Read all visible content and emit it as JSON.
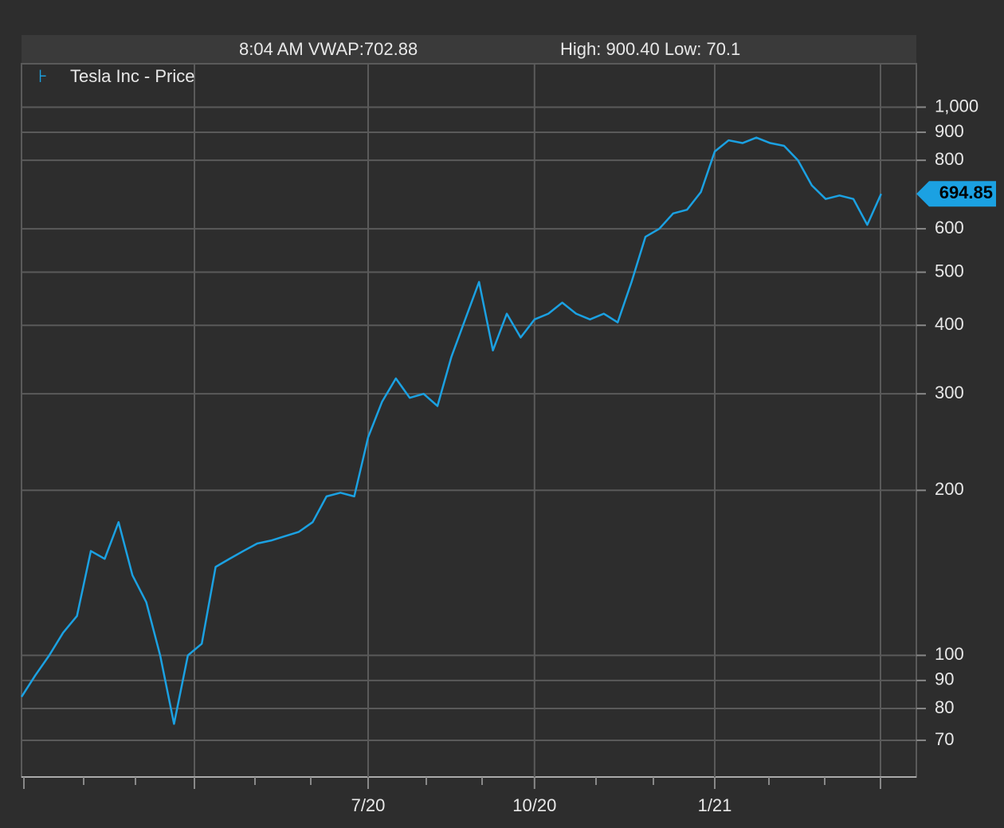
{
  "chart_data": {
    "type": "line",
    "annotations": [
      "8:04 AM VWAP:702.88",
      "High: 900.40 Low: 70.1"
    ],
    "categories": [
      null,
      null,
      null,
      null,
      null,
      null,
      null,
      null,
      null,
      null,
      null,
      null,
      null,
      null,
      null,
      null,
      null,
      null,
      null,
      null,
      null,
      null,
      null,
      null,
      null,
      "7/20",
      null,
      null,
      null,
      null,
      null,
      null,
      null,
      null,
      null,
      null,
      null,
      "10/20",
      null,
      null,
      null,
      null,
      null,
      null,
      null,
      null,
      null,
      null,
      null,
      null,
      "1/21",
      null,
      null,
      null,
      null,
      null,
      null,
      null,
      null,
      null,
      null,
      null,
      null
    ],
    "series": [
      {
        "name": "Tesla Inc - Price",
        "color": "#1ba1e2",
        "values": [
          84,
          92,
          100,
          110,
          118,
          155,
          150,
          175,
          140,
          125,
          100,
          75,
          100,
          105,
          145,
          150,
          155,
          160,
          162,
          165,
          168,
          175,
          195,
          198,
          195,
          250,
          290,
          320,
          295,
          300,
          285,
          350,
          410,
          480,
          360,
          420,
          380,
          410,
          420,
          440,
          420,
          410,
          420,
          405,
          480,
          580,
          600,
          640,
          650,
          700,
          830,
          870,
          860,
          880,
          860,
          850,
          800,
          720,
          680,
          690,
          680,
          610,
          694.85
        ]
      }
    ],
    "ylim": [
      60,
      1200
    ],
    "log_scale": true,
    "yticks": [
      70,
      80,
      90,
      100,
      200,
      300,
      400,
      500,
      600,
      800,
      900,
      {
        "value": 1000,
        "label": "1,000"
      }
    ],
    "grid": true
  }
}
